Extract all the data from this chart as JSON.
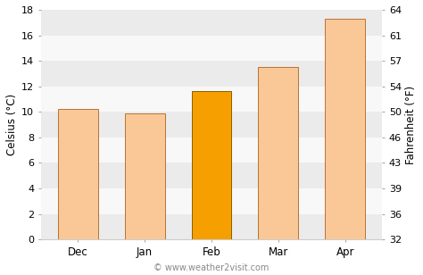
{
  "categories": [
    "Dec",
    "Jan",
    "Feb",
    "Mar",
    "Apr"
  ],
  "values": [
    10.2,
    9.9,
    11.6,
    13.5,
    17.3
  ],
  "bar_colors": [
    "#f9c896",
    "#f9c896",
    "#f5a000",
    "#f9c896",
    "#f9c896"
  ],
  "bar_edgecolors": [
    "#b87333",
    "#b87333",
    "#8B5E00",
    "#b87333",
    "#b87333"
  ],
  "ylabel_left": "Celsius (°C)",
  "ylabel_right": "Fahrenheit (°F)",
  "ylim_c": [
    0,
    18
  ],
  "yticks_c": [
    0,
    2,
    4,
    6,
    8,
    10,
    12,
    14,
    16,
    18
  ],
  "yticks_f": [
    32,
    36,
    39,
    43,
    46,
    50,
    54,
    57,
    61,
    64
  ],
  "watermark": "© www.weather2visit.com",
  "bg_color": "#ffffff",
  "band_colors": [
    "#ebebeb",
    "#f8f8f8"
  ],
  "bar_width": 0.6,
  "figsize": [
    4.74,
    3.08
  ],
  "dpi": 100
}
